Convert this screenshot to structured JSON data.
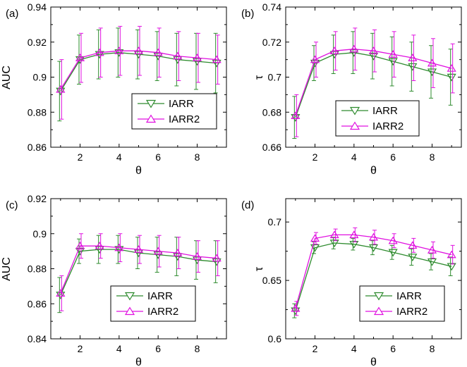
{
  "colors": {
    "iarr": "#2e8b2e",
    "iarr2": "#e010e0",
    "axis": "#000000",
    "legend_border": "#000000"
  },
  "chart_data": [
    {
      "type": "line",
      "panel_label": "(a)",
      "xlabel": "θ",
      "ylabel": "AUC",
      "xlim": [
        0.5,
        9.5
      ],
      "ylim": [
        0.86,
        0.94
      ],
      "xticks": [
        2,
        4,
        6,
        8
      ],
      "yticks": [
        0.86,
        0.88,
        0.9,
        0.92,
        0.94
      ],
      "ytick_labels": [
        "0.86",
        "0.88",
        "0.9",
        "0.92",
        "0.94"
      ],
      "grid": false,
      "legend_position": "lower-right",
      "x": [
        1,
        2,
        3,
        4,
        5,
        6,
        7,
        8,
        9
      ],
      "series": [
        {
          "name": "IARR",
          "marker": "triangle-down",
          "color_key": "iarr",
          "values": [
            0.892,
            0.91,
            0.913,
            0.914,
            0.913,
            0.912,
            0.91,
            0.909,
            0.908
          ],
          "errors": [
            0.017,
            0.014,
            0.014,
            0.014,
            0.014,
            0.014,
            0.015,
            0.016,
            0.017
          ]
        },
        {
          "name": "IARR2",
          "marker": "triangle-up",
          "color_key": "iarr2",
          "values": [
            0.893,
            0.911,
            0.914,
            0.915,
            0.915,
            0.914,
            0.912,
            0.911,
            0.91
          ],
          "errors": [
            0.017,
            0.014,
            0.014,
            0.014,
            0.014,
            0.014,
            0.014,
            0.014,
            0.014
          ]
        }
      ]
    },
    {
      "type": "line",
      "panel_label": "(b)",
      "xlabel": "θ",
      "ylabel": "τ",
      "xlim": [
        0.5,
        9.5
      ],
      "ylim": [
        0.66,
        0.74
      ],
      "xticks": [
        2,
        4,
        6,
        8
      ],
      "yticks": [
        0.66,
        0.68,
        0.7,
        0.72,
        0.74
      ],
      "ytick_labels": [
        "0.66",
        "0.68",
        "0.7",
        "0.72",
        "0.74"
      ],
      "grid": false,
      "legend_position": "lower-right",
      "x": [
        1,
        2,
        3,
        4,
        5,
        6,
        7,
        8,
        9
      ],
      "series": [
        {
          "name": "IARR",
          "marker": "triangle-down",
          "color_key": "iarr",
          "values": [
            0.677,
            0.708,
            0.713,
            0.714,
            0.712,
            0.709,
            0.706,
            0.703,
            0.7
          ],
          "errors": [
            0.012,
            0.01,
            0.011,
            0.012,
            0.013,
            0.014,
            0.014,
            0.015,
            0.016
          ]
        },
        {
          "name": "IARR2",
          "marker": "triangle-up",
          "color_key": "iarr2",
          "values": [
            0.678,
            0.71,
            0.715,
            0.716,
            0.715,
            0.713,
            0.711,
            0.708,
            0.705
          ],
          "errors": [
            0.012,
            0.01,
            0.011,
            0.012,
            0.012,
            0.013,
            0.013,
            0.014,
            0.014
          ]
        }
      ]
    },
    {
      "type": "line",
      "panel_label": "(c)",
      "xlabel": "θ",
      "ylabel": "AUC",
      "xlim": [
        0.5,
        9.5
      ],
      "ylim": [
        0.84,
        0.92
      ],
      "xticks": [
        2,
        4,
        6,
        8
      ],
      "yticks": [
        0.84,
        0.86,
        0.88,
        0.9,
        0.92
      ],
      "ytick_labels": [
        "0.84",
        "0.86",
        "0.88",
        "0.9",
        "0.92"
      ],
      "grid": false,
      "legend_position": "lower-right",
      "x": [
        1,
        2,
        3,
        4,
        5,
        6,
        7,
        8,
        9
      ],
      "series": [
        {
          "name": "IARR",
          "marker": "triangle-down",
          "color_key": "iarr",
          "values": [
            0.865,
            0.89,
            0.891,
            0.891,
            0.889,
            0.888,
            0.887,
            0.885,
            0.884
          ],
          "errors": [
            0.01,
            0.007,
            0.008,
            0.008,
            0.009,
            0.01,
            0.011,
            0.011,
            0.012
          ]
        },
        {
          "name": "IARR2",
          "marker": "triangle-up",
          "color_key": "iarr2",
          "values": [
            0.866,
            0.893,
            0.893,
            0.892,
            0.891,
            0.89,
            0.889,
            0.887,
            0.886
          ],
          "errors": [
            0.01,
            0.007,
            0.007,
            0.008,
            0.008,
            0.009,
            0.009,
            0.009,
            0.01
          ]
        }
      ]
    },
    {
      "type": "line",
      "panel_label": "(d)",
      "xlabel": "θ",
      "ylabel": "τ",
      "xlim": [
        0.5,
        9.5
      ],
      "ylim": [
        0.6,
        0.72
      ],
      "xticks": [
        2,
        4,
        6,
        8
      ],
      "yticks": [
        0.6,
        0.65,
        0.7
      ],
      "ytick_labels": [
        "0.6",
        "0.65",
        "0.7"
      ],
      "grid": false,
      "legend_position": "lower-right",
      "x": [
        1,
        2,
        3,
        4,
        5,
        6,
        7,
        8,
        9
      ],
      "series": [
        {
          "name": "IARR",
          "marker": "triangle-down",
          "color_key": "iarr",
          "values": [
            0.624,
            0.678,
            0.682,
            0.681,
            0.678,
            0.674,
            0.67,
            0.666,
            0.662
          ],
          "errors": [
            0.006,
            0.005,
            0.005,
            0.005,
            0.006,
            0.006,
            0.007,
            0.007,
            0.008
          ]
        },
        {
          "name": "IARR2",
          "marker": "triangle-up",
          "color_key": "iarr2",
          "values": [
            0.626,
            0.686,
            0.689,
            0.689,
            0.687,
            0.684,
            0.68,
            0.676,
            0.672
          ],
          "errors": [
            0.006,
            0.005,
            0.005,
            0.006,
            0.006,
            0.006,
            0.006,
            0.007,
            0.008
          ]
        }
      ]
    }
  ]
}
